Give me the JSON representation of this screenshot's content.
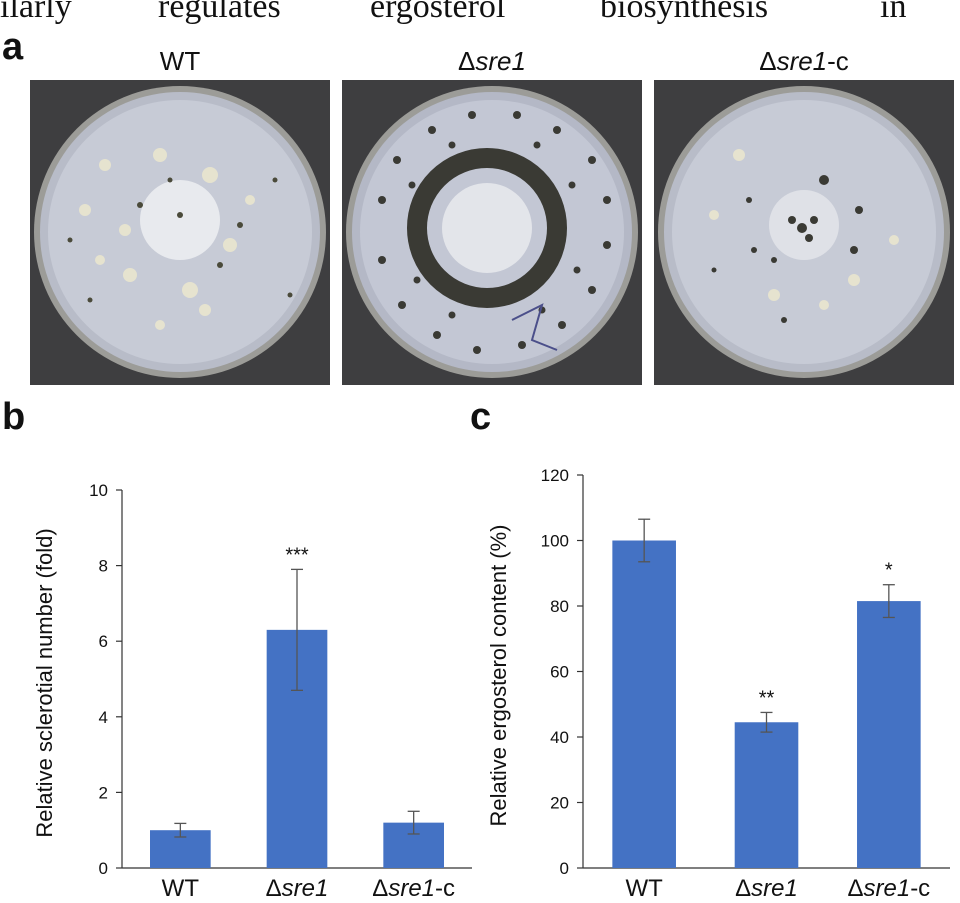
{
  "header_words": [
    "ilarly",
    "regulates",
    "ergosterol",
    "biosynthesis",
    "in"
  ],
  "panel_a": {
    "letter": "a",
    "plates": [
      {
        "label_main": "WT",
        "label_italic": "",
        "label_suffix": ""
      },
      {
        "label_main": "Δ",
        "label_italic": "sre1",
        "label_suffix": ""
      },
      {
        "label_main": "Δ",
        "label_italic": "sre1",
        "label_suffix": "-c"
      }
    ]
  },
  "panel_b": {
    "letter": "b"
  },
  "panel_c": {
    "letter": "c"
  },
  "chart_data": [
    {
      "type": "bar",
      "title": "",
      "xlabel": "",
      "ylabel": "Relative sclerotial number (fold)",
      "ylim": [
        0,
        10
      ],
      "yticks": [
        0,
        2,
        4,
        6,
        8,
        10
      ],
      "categories": [
        "WT",
        "Δsre1",
        "Δsre1-c"
      ],
      "values": [
        1.0,
        6.3,
        1.2
      ],
      "errors": [
        0.18,
        1.6,
        0.3
      ],
      "significance": [
        "",
        "***",
        ""
      ],
      "bar_color": "#4472c4",
      "grid": false
    },
    {
      "type": "bar",
      "title": "",
      "xlabel": "",
      "ylabel": "Relative ergosterol content  (%)",
      "ylim": [
        0,
        120
      ],
      "yticks": [
        0,
        20,
        40,
        60,
        80,
        100,
        120
      ],
      "categories": [
        "WT",
        "Δsre1",
        "Δsre1-c"
      ],
      "values": [
        100,
        44.5,
        81.5
      ],
      "errors": [
        6.5,
        3,
        5
      ],
      "significance": [
        "",
        "**",
        "*"
      ],
      "bar_color": "#4472c4",
      "grid": false
    }
  ]
}
